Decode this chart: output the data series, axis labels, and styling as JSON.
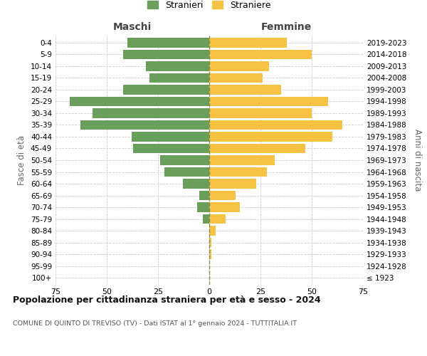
{
  "age_groups": [
    "100+",
    "95-99",
    "90-94",
    "85-89",
    "80-84",
    "75-79",
    "70-74",
    "65-69",
    "60-64",
    "55-59",
    "50-54",
    "45-49",
    "40-44",
    "35-39",
    "30-34",
    "25-29",
    "20-24",
    "15-19",
    "10-14",
    "5-9",
    "0-4"
  ],
  "birth_years": [
    "≤ 1923",
    "1924-1928",
    "1929-1933",
    "1934-1938",
    "1939-1943",
    "1944-1948",
    "1949-1953",
    "1954-1958",
    "1959-1963",
    "1964-1968",
    "1969-1973",
    "1974-1978",
    "1979-1983",
    "1984-1988",
    "1989-1993",
    "1994-1998",
    "1999-2003",
    "2004-2008",
    "2009-2013",
    "2014-2018",
    "2019-2023"
  ],
  "males": [
    0,
    0,
    0,
    0,
    0,
    3,
    6,
    5,
    13,
    22,
    24,
    37,
    38,
    63,
    57,
    68,
    42,
    29,
    31,
    42,
    40
  ],
  "females": [
    0,
    0,
    1,
    1,
    3,
    8,
    15,
    13,
    23,
    28,
    32,
    47,
    60,
    65,
    50,
    58,
    35,
    26,
    29,
    50,
    38
  ],
  "male_color": "#6a9f5b",
  "female_color": "#f5c243",
  "background_color": "#ffffff",
  "grid_color": "#cccccc",
  "title": "Popolazione per cittadinanza straniera per età e sesso - 2024",
  "subtitle": "COMUNE DI QUINTO DI TREVISO (TV) - Dati ISTAT al 1° gennaio 2024 - TUTTITALIA.IT",
  "xlabel_left": "Maschi",
  "xlabel_right": "Femmine",
  "ylabel_left": "Fasce di età",
  "ylabel_right": "Anni di nascita",
  "legend_male": "Stranieri",
  "legend_female": "Straniere",
  "xlim": 75
}
